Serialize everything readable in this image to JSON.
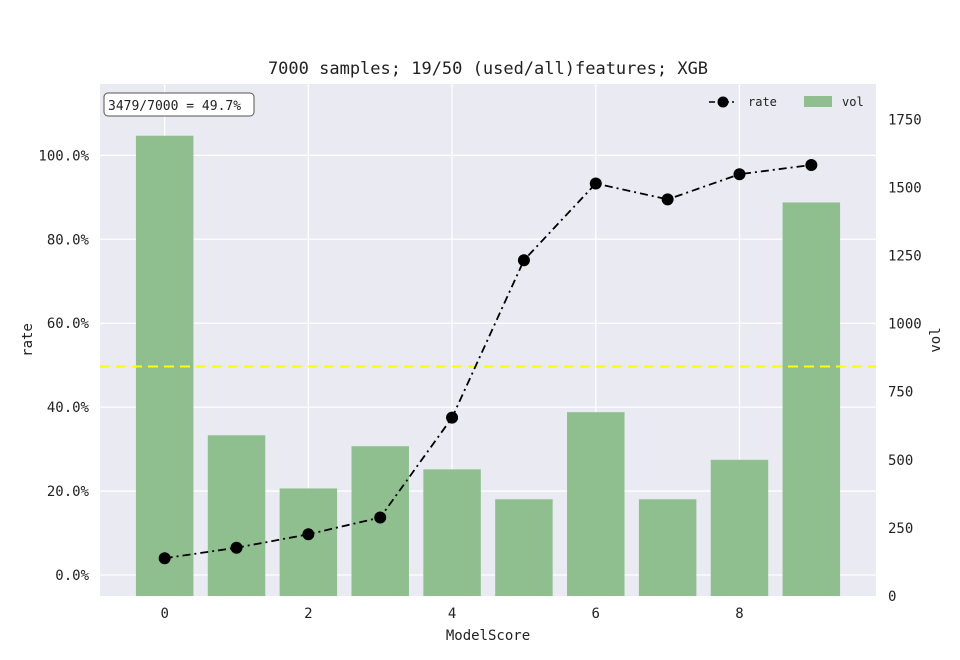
{
  "chart_data": {
    "type": "bar+line",
    "title": "7000 samples; 19/50 (used/all)features; XGB",
    "xlabel": "ModelScore",
    "ylabel_left": "rate",
    "ylabel_right": "vol",
    "annotation": "3479/7000 = 49.7%",
    "categories": [
      0,
      1,
      2,
      3,
      4,
      5,
      6,
      7,
      8,
      9
    ],
    "x_ticks": [
      "0",
      "2",
      "4",
      "6",
      "8"
    ],
    "x_tick_values": [
      0,
      2,
      4,
      6,
      8
    ],
    "y_left_ticks": [
      "0.0%",
      "20.0%",
      "40.0%",
      "60.0%",
      "80.0%",
      "100.0%"
    ],
    "y_left_tick_values": [
      0,
      0.2,
      0.4,
      0.6,
      0.8,
      1.0
    ],
    "y_right_ticks": [
      "0",
      "250",
      "500",
      "750",
      "1000",
      "1250",
      "1500",
      "1750"
    ],
    "y_right_tick_values": [
      0,
      250,
      500,
      750,
      1000,
      1250,
      1500,
      1750
    ],
    "ylim_left": [
      -0.05,
      1.17
    ],
    "ylim_right": [
      0,
      1880
    ],
    "xlim": [
      -0.9,
      9.9
    ],
    "series": [
      {
        "name": "vol",
        "kind": "bar",
        "color": "#8fbf8f",
        "values": [
          1690,
          590,
          395,
          550,
          465,
          355,
          675,
          355,
          500,
          1445
        ]
      },
      {
        "name": "rate",
        "kind": "line",
        "color": "#000000",
        "values": [
          0.04,
          0.065,
          0.097,
          0.137,
          0.375,
          0.75,
          0.933,
          0.895,
          0.955,
          0.977
        ]
      }
    ],
    "reference_line": {
      "value": 0.497,
      "color": "#ffff00"
    },
    "legend": {
      "position": "top-right",
      "entries": [
        "rate",
        "vol"
      ]
    },
    "grid": true,
    "background": "#eaeaf2"
  }
}
